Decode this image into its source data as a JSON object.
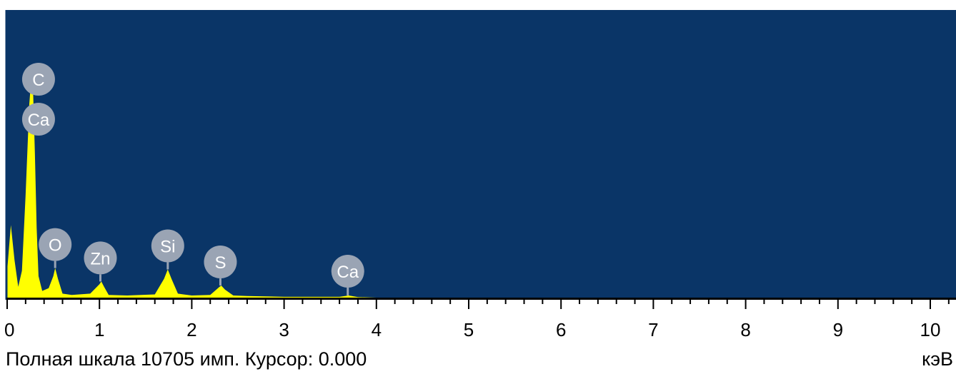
{
  "status": {
    "full_scale_label": "Полная шкала",
    "full_scale_value": "10705",
    "counts_unit": "имп.",
    "cursor_label": "Курсор:",
    "cursor_value": "0.000",
    "energy_unit": "кэВ"
  },
  "colors": {
    "plot_background": "#0a3567",
    "spectrum_fill": "#ffff00",
    "marker_fill": "#9aa4b4",
    "marker_text": "#ffffff",
    "axis": "#000000"
  },
  "chart_data": {
    "type": "area",
    "title": "",
    "xlabel": "кэВ",
    "ylabel": "",
    "xlim": [
      0,
      10.1
    ],
    "ylim": [
      0,
      10705
    ],
    "x_ticks": [
      0,
      1,
      2,
      3,
      4,
      5,
      6,
      7,
      8,
      9,
      10
    ],
    "x_tick_labels": [
      "0",
      "1",
      "2",
      "3",
      "4",
      "5",
      "6",
      "7",
      "8",
      "9",
      "10"
    ],
    "series": [
      {
        "x": [
          0.0,
          0.04,
          0.08,
          0.12,
          0.16,
          0.2,
          0.24,
          0.26,
          0.28,
          0.3,
          0.32,
          0.34,
          0.38,
          0.45,
          0.5,
          0.52,
          0.55,
          0.6,
          0.7,
          0.9,
          1.0,
          1.02,
          1.05,
          1.1,
          1.3,
          1.6,
          1.7,
          1.74,
          1.78,
          1.85,
          2.0,
          2.2,
          2.3,
          2.32,
          2.36,
          2.45,
          2.6,
          3.0,
          3.6,
          3.7,
          3.8,
          4.0
        ],
        "y": [
          1000,
          2700,
          1400,
          400,
          1000,
          3800,
          7200,
          8100,
          7800,
          5400,
          2600,
          800,
          250,
          350,
          800,
          1100,
          700,
          150,
          100,
          150,
          500,
          600,
          400,
          100,
          80,
          120,
          700,
          1050,
          700,
          150,
          80,
          100,
          400,
          450,
          300,
          80,
          60,
          30,
          30,
          80,
          20,
          0
        ]
      }
    ],
    "annotations": [
      {
        "label": "C",
        "energy": 0.28
      },
      {
        "label": "Ca",
        "energy": 0.34
      },
      {
        "label": "O",
        "energy": 0.52
      },
      {
        "label": "Zn",
        "energy": 1.01
      },
      {
        "label": "Si",
        "energy": 1.74
      },
      {
        "label": "S",
        "energy": 2.31
      },
      {
        "label": "Ca",
        "energy": 3.69
      }
    ]
  }
}
